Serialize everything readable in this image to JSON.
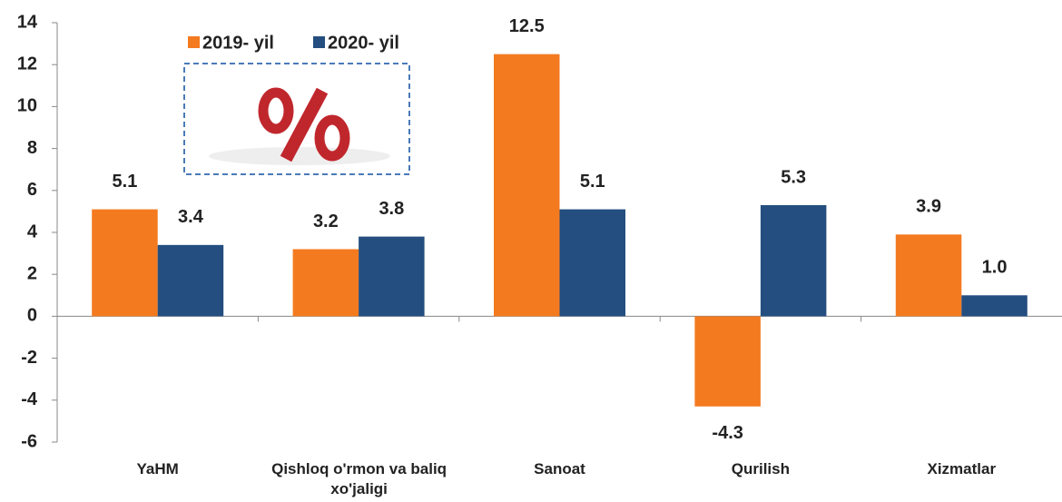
{
  "chart_data": {
    "type": "bar",
    "categories": [
      "YaHM",
      "Qishloq o'rmon va baliq xo'jaligi",
      "Sanoat",
      "Qurilish",
      "Xizmatlar"
    ],
    "series": [
      {
        "name": "2019- yil",
        "color": "#f47a1f",
        "values": [
          5.1,
          3.2,
          12.5,
          -4.3,
          3.9
        ],
        "value_labels": [
          "5.1",
          "3.2",
          "12.5",
          "-4.3",
          "3.9"
        ]
      },
      {
        "name": "2020- yil",
        "color": "#244e7f",
        "values": [
          3.4,
          3.8,
          5.1,
          5.3,
          1.0
        ],
        "value_labels": [
          "3.4",
          "3.8",
          "5.1",
          "5.3",
          "1.0"
        ]
      }
    ],
    "ylim": [
      -6,
      14
    ],
    "yticks": [
      -6,
      -4,
      -2,
      0,
      2,
      4,
      6,
      8,
      10,
      12,
      14
    ],
    "grid": false,
    "legend": "top"
  }
}
